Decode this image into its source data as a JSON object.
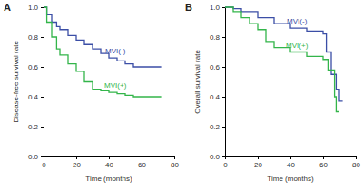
{
  "chart_data": [
    {
      "type": "step",
      "title": "A",
      "y_label": "Disease-free survival rate",
      "x_label": "Time (months)",
      "xlim": [
        0,
        80
      ],
      "xticks": [
        0,
        20,
        40,
        60,
        80
      ],
      "ylim": [
        0,
        1
      ],
      "yticks": [
        {
          "value": 0,
          "label": "0.0"
        },
        {
          "value": 0.2,
          "label": "0.2"
        },
        {
          "value": 0.4,
          "label": "0.4"
        },
        {
          "value": 0.6,
          "label": "0.6"
        },
        {
          "value": 0.8,
          "label": "0.8"
        },
        {
          "value": 1,
          "label": "1.0"
        }
      ],
      "series": [
        {
          "name": "MVI(-)",
          "color": "#3b4ea6",
          "x": [
            0,
            2,
            5,
            8,
            10,
            15,
            20,
            25,
            30,
            35,
            40,
            45,
            50,
            55,
            72
          ],
          "values": [
            1.0,
            0.95,
            0.9,
            0.87,
            0.85,
            0.81,
            0.78,
            0.75,
            0.72,
            0.69,
            0.66,
            0.64,
            0.62,
            0.6,
            0.6
          ]
        },
        {
          "name": "MVI(+)",
          "color": "#33b54a",
          "x": [
            0,
            2,
            5,
            8,
            10,
            15,
            20,
            25,
            30,
            35,
            40,
            45,
            50,
            55,
            72
          ],
          "values": [
            1.0,
            0.9,
            0.8,
            0.72,
            0.68,
            0.62,
            0.57,
            0.5,
            0.45,
            0.44,
            0.43,
            0.42,
            0.41,
            0.4,
            0.4
          ]
        }
      ]
    },
    {
      "type": "step",
      "title": "B",
      "y_label": "Overall survival rate",
      "x_label": "Time (months)",
      "xlim": [
        0,
        80
      ],
      "xticks": [
        0,
        20,
        40,
        60,
        80
      ],
      "ylim": [
        0,
        1
      ],
      "yticks": [
        {
          "value": 0,
          "label": "0.0"
        },
        {
          "value": 0.2,
          "label": "0.2"
        },
        {
          "value": 0.4,
          "label": "0.4"
        },
        {
          "value": 0.6,
          "label": "0.6"
        },
        {
          "value": 0.8,
          "label": "0.8"
        },
        {
          "value": 1,
          "label": "1.0"
        }
      ],
      "series": [
        {
          "name": "MVI(-)",
          "color": "#3b4ea6",
          "x": [
            0,
            5,
            10,
            20,
            30,
            40,
            50,
            60,
            62,
            65,
            68,
            70,
            72
          ],
          "values": [
            1.0,
            0.99,
            0.97,
            0.93,
            0.89,
            0.86,
            0.84,
            0.82,
            0.7,
            0.55,
            0.45,
            0.37,
            0.37
          ]
        },
        {
          "name": "MVI(+)",
          "color": "#33b54a",
          "x": [
            0,
            5,
            10,
            15,
            20,
            25,
            30,
            40,
            50,
            60,
            63,
            67,
            68,
            70
          ],
          "values": [
            1.0,
            0.97,
            0.93,
            0.89,
            0.85,
            0.77,
            0.73,
            0.7,
            0.67,
            0.65,
            0.58,
            0.4,
            0.3,
            0.3
          ]
        }
      ]
    }
  ]
}
